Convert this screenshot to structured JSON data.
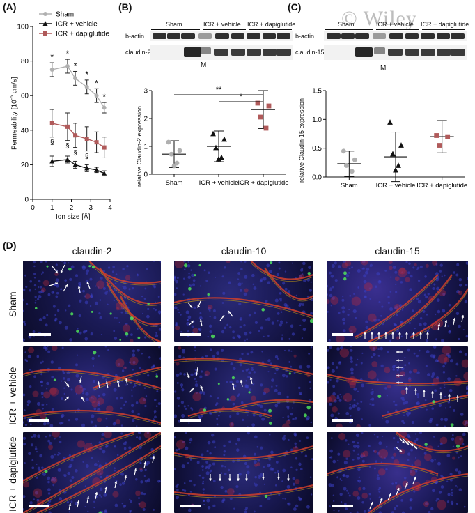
{
  "panels": {
    "A": {
      "label": "(A)",
      "legend": [
        "Sham",
        "ICR + vehicle",
        "ICR + dapiglutide"
      ],
      "ylabel": "Permeability [10-6 cm/s]",
      "ylabel_main": "Permeability [10",
      "ylabel_sup": "-6",
      "ylabel_end": " cm/s]",
      "xlabel": "Ion size [Å]",
      "star": "*",
      "section": "§"
    },
    "B": {
      "label": "(B)",
      "blot_headers": [
        "Sham",
        "ICR + vehicle",
        "ICR + dapiglutide"
      ],
      "blot_rows": [
        "b-actin",
        "claudin-2"
      ],
      "marker": "M",
      "ylabel": "relative Claudin-2 expression",
      "sig": [
        "**",
        "*"
      ]
    },
    "C": {
      "label": "(C)",
      "blot_headers": [
        "Sham",
        "ICR + vehicle",
        "ICR + dapiglutide"
      ],
      "blot_rows": [
        "b-actin",
        "claudin-15"
      ],
      "marker": "M",
      "ylabel": "relative Claudin-15 expression",
      "watermark": "© Wiley"
    },
    "D": {
      "label": "(D)",
      "columns": [
        "claudin-2",
        "claudin-10",
        "claudin-15"
      ],
      "rows": [
        "Sham",
        "ICR + vehicle",
        "ICR + dapiglutide"
      ]
    }
  },
  "chart_data": [
    {
      "type": "line",
      "panel": "A",
      "xlabel": "Ion size [Å]",
      "ylabel": "Permeability [10^-6 cm/s]",
      "xlim": [
        0,
        4
      ],
      "ylim": [
        0,
        100
      ],
      "xticks": [
        0,
        1,
        2,
        3,
        4
      ],
      "yticks": [
        0,
        20,
        40,
        60,
        80,
        100
      ],
      "series": [
        {
          "name": "Sham",
          "color": "#b0b0b0",
          "marker": "circle",
          "x": [
            1.0,
            1.8,
            2.2,
            2.8,
            3.3,
            3.7
          ],
          "y": [
            75,
            77,
            70,
            65,
            60,
            53
          ],
          "err": [
            4,
            4,
            4,
            4,
            4,
            3
          ]
        },
        {
          "name": "ICR + vehicle",
          "color": "#111111",
          "marker": "triangle",
          "x": [
            1.0,
            1.8,
            2.2,
            2.8,
            3.3,
            3.7
          ],
          "y": [
            22,
            23,
            20,
            18,
            17,
            15
          ],
          "err": [
            3,
            2,
            2,
            2,
            1.5,
            1.5
          ]
        },
        {
          "name": "ICR + dapiglutide",
          "color": "#b05a5a",
          "marker": "square",
          "x": [
            1.0,
            1.8,
            2.2,
            2.8,
            3.3,
            3.7
          ],
          "y": [
            44,
            42,
            37,
            35,
            33,
            30
          ],
          "err": [
            8,
            8,
            7,
            7,
            6,
            6
          ]
        }
      ],
      "stars_x": [
        1.0,
        1.8,
        2.2,
        2.8,
        3.3,
        3.7
      ],
      "section_x": [
        1.0,
        1.8,
        2.2,
        2.8
      ]
    },
    {
      "type": "scatter",
      "panel": "B",
      "ylabel": "relative Claudin-2 expression",
      "categories": [
        "Sham",
        "ICR + vehicle",
        "ICR + dapiglutide"
      ],
      "ylim": [
        0,
        3
      ],
      "yticks": [
        0,
        1,
        2,
        3
      ],
      "groups": [
        {
          "name": "Sham",
          "color": "#b0b0b0",
          "marker": "circle",
          "mean": 0.72,
          "sd": 0.48,
          "points": [
            1.15,
            0.85,
            0.72,
            0.4,
            0.3
          ]
        },
        {
          "name": "ICR + vehicle",
          "color": "#111111",
          "marker": "triangle",
          "mean": 1.0,
          "sd": 0.55,
          "points": [
            1.45,
            1.25,
            0.95,
            0.6,
            0.55
          ]
        },
        {
          "name": "ICR + dapiglutide",
          "color": "#b05a5a",
          "marker": "square",
          "mean": 2.32,
          "sd": 0.68,
          "points": [
            2.55,
            2.45,
            2.05,
            1.65
          ]
        }
      ],
      "significance": [
        {
          "from": 0,
          "to": 2,
          "y": 2.85,
          "label": "**"
        },
        {
          "from": 1,
          "to": 2,
          "y": 2.6,
          "label": "*"
        }
      ]
    },
    {
      "type": "scatter",
      "panel": "C",
      "ylabel": "relative Claudin-15 expression",
      "categories": [
        "Sham",
        "ICR + vehicle",
        "ICR + dapiglutide"
      ],
      "ylim": [
        0,
        1.5
      ],
      "yticks": [
        0.0,
        0.5,
        1.0,
        1.5
      ],
      "groups": [
        {
          "name": "Sham",
          "color": "#b0b0b0",
          "marker": "circle",
          "mean": 0.23,
          "sd": 0.22,
          "points": [
            0.45,
            0.3,
            0.2,
            0.1
          ]
        },
        {
          "name": "ICR + vehicle",
          "color": "#111111",
          "marker": "triangle",
          "mean": 0.35,
          "sd": 0.43,
          "points": [
            0.95,
            0.55,
            0.4,
            0.2,
            0.12
          ]
        },
        {
          "name": "ICR + dapiglutide",
          "color": "#b05a5a",
          "marker": "square",
          "mean": 0.7,
          "sd": 0.28,
          "points": [
            0.72,
            0.7,
            0.55
          ]
        }
      ]
    }
  ]
}
